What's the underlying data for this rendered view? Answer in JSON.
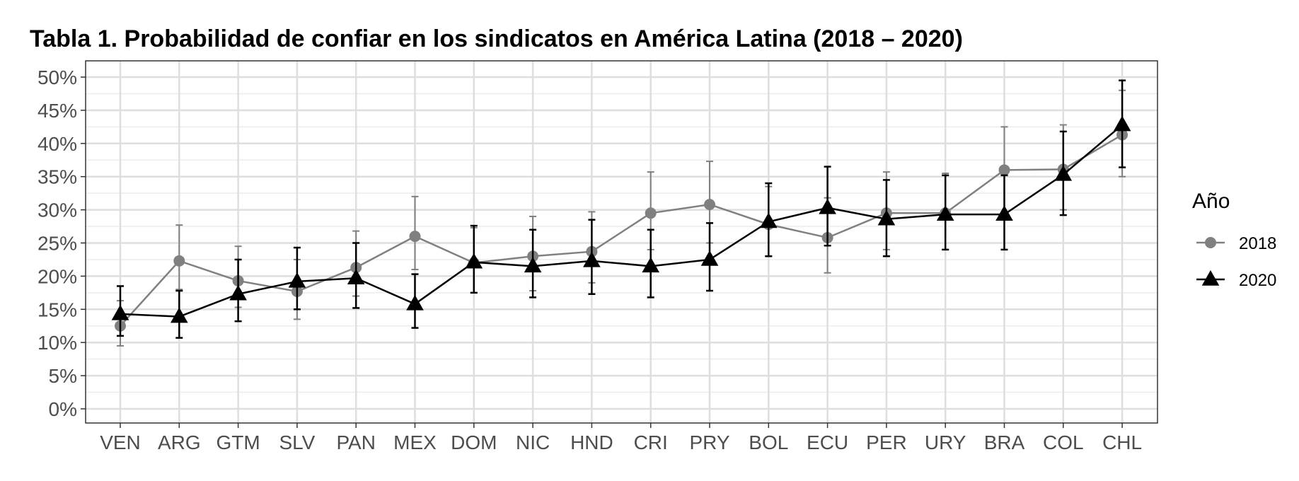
{
  "title": "Tabla 1. Probabilidad de confiar en los sindicatos en América Latina (2018 – 2020)",
  "chart_data": {
    "type": "line",
    "title": "Tabla 1. Probabilidad de confiar en los sindicatos en América Latina (2018 – 2020)",
    "xlabel": "",
    "ylabel": "",
    "ylim": [
      0,
      0.5
    ],
    "y_ticks": [
      "0%",
      "5%",
      "10%",
      "15%",
      "20%",
      "25%",
      "30%",
      "35%",
      "40%",
      "45%",
      "50%"
    ],
    "y_tick_values": [
      0,
      0.05,
      0.1,
      0.15,
      0.2,
      0.25,
      0.3,
      0.35,
      0.4,
      0.45,
      0.5
    ],
    "grid": true,
    "legend": {
      "title": "Año",
      "position": "right"
    },
    "categories": [
      "VEN",
      "ARG",
      "GTM",
      "SLV",
      "PAN",
      "MEX",
      "DOM",
      "NIC",
      "HND",
      "CRI",
      "PRY",
      "BOL",
      "ECU",
      "PER",
      "URY",
      "BRA",
      "COL",
      "CHL"
    ],
    "series": [
      {
        "name": "2018",
        "color": "#808080",
        "marker": "circle",
        "values": [
          0.125,
          0.223,
          0.193,
          0.177,
          0.213,
          0.26,
          0.22,
          0.23,
          0.237,
          0.295,
          0.308,
          0.278,
          0.258,
          0.295,
          0.295,
          0.36,
          0.361,
          0.413
        ],
        "lower": [
          0.095,
          0.18,
          0.153,
          0.135,
          0.17,
          0.21,
          0.175,
          0.178,
          0.19,
          0.24,
          0.25,
          0.23,
          0.205,
          0.24,
          0.24,
          0.295,
          0.3,
          0.35
        ],
        "upper": [
          0.163,
          0.277,
          0.245,
          0.225,
          0.268,
          0.32,
          0.273,
          0.29,
          0.297,
          0.357,
          0.373,
          0.335,
          0.318,
          0.357,
          0.355,
          0.425,
          0.428,
          0.48
        ]
      },
      {
        "name": "2020",
        "color": "#000000",
        "marker": "triangle",
        "values": [
          0.143,
          0.139,
          0.173,
          0.192,
          0.197,
          0.158,
          0.221,
          0.215,
          0.223,
          0.215,
          0.225,
          0.282,
          0.303,
          0.286,
          0.293,
          0.293,
          0.353,
          0.428
        ],
        "lower": [
          0.11,
          0.107,
          0.132,
          0.15,
          0.152,
          0.122,
          0.175,
          0.168,
          0.173,
          0.168,
          0.178,
          0.23,
          0.246,
          0.23,
          0.24,
          0.24,
          0.292,
          0.364
        ],
        "upper": [
          0.185,
          0.178,
          0.225,
          0.243,
          0.25,
          0.203,
          0.276,
          0.27,
          0.285,
          0.27,
          0.28,
          0.34,
          0.365,
          0.345,
          0.352,
          0.352,
          0.418,
          0.495
        ]
      }
    ]
  }
}
